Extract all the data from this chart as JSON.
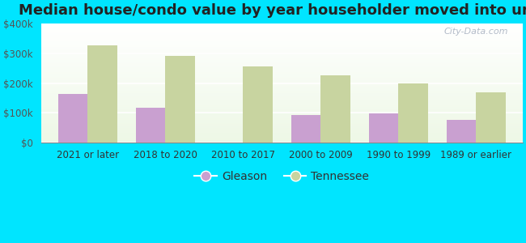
{
  "title": "Median house/condo value by year householder moved into unit",
  "categories": [
    "2021 or later",
    "2018 to 2020",
    "2010 to 2017",
    "2000 to 2009",
    "1990 to 1999",
    "1989 or earlier"
  ],
  "gleason_values": [
    162000,
    118000,
    0,
    93000,
    97000,
    75000
  ],
  "tennessee_values": [
    328000,
    291000,
    257000,
    225000,
    198000,
    168000
  ],
  "gleason_color": "#c9a0d0",
  "tennessee_color": "#c8d4a0",
  "background_outer": "#00e5ff",
  "ylim": [
    0,
    400000
  ],
  "yticks": [
    0,
    100000,
    200000,
    300000,
    400000
  ],
  "ytick_labels": [
    "$0",
    "$100k",
    "$200k",
    "$300k",
    "$400k"
  ],
  "legend_gleason": "Gleason",
  "legend_tennessee": "Tennessee",
  "watermark": "City-Data.com",
  "bar_width": 0.38,
  "title_fontsize": 13,
  "tick_fontsize": 8.5,
  "legend_fontsize": 10
}
